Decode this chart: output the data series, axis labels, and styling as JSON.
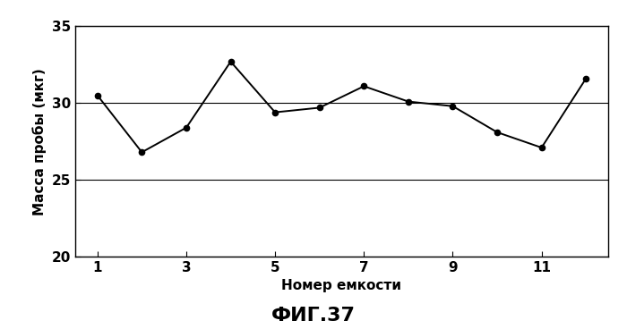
{
  "x": [
    1,
    2,
    3,
    4,
    5,
    6,
    7,
    8,
    9,
    10,
    11,
    12
  ],
  "y": [
    30.5,
    26.8,
    28.4,
    32.7,
    29.4,
    29.7,
    31.1,
    30.1,
    29.8,
    28.1,
    27.1,
    31.6
  ],
  "xlabel": "Номер емкости",
  "ylabel": "Масса пробы (мкг)",
  "caption": "ФИГ.37",
  "xlim": [
    0.5,
    12.5
  ],
  "ylim": [
    20,
    35
  ],
  "yticks": [
    20,
    25,
    30,
    35
  ],
  "xticks": [
    1,
    3,
    5,
    7,
    9,
    11
  ],
  "line_color": "#000000",
  "marker": "o",
  "markersize": 4.5,
  "linewidth": 1.4,
  "bg_color": "#ffffff",
  "grid_color": "#000000",
  "tick_labelsize": 11,
  "xlabel_fontsize": 11,
  "ylabel_fontsize": 11,
  "caption_fontsize": 16
}
